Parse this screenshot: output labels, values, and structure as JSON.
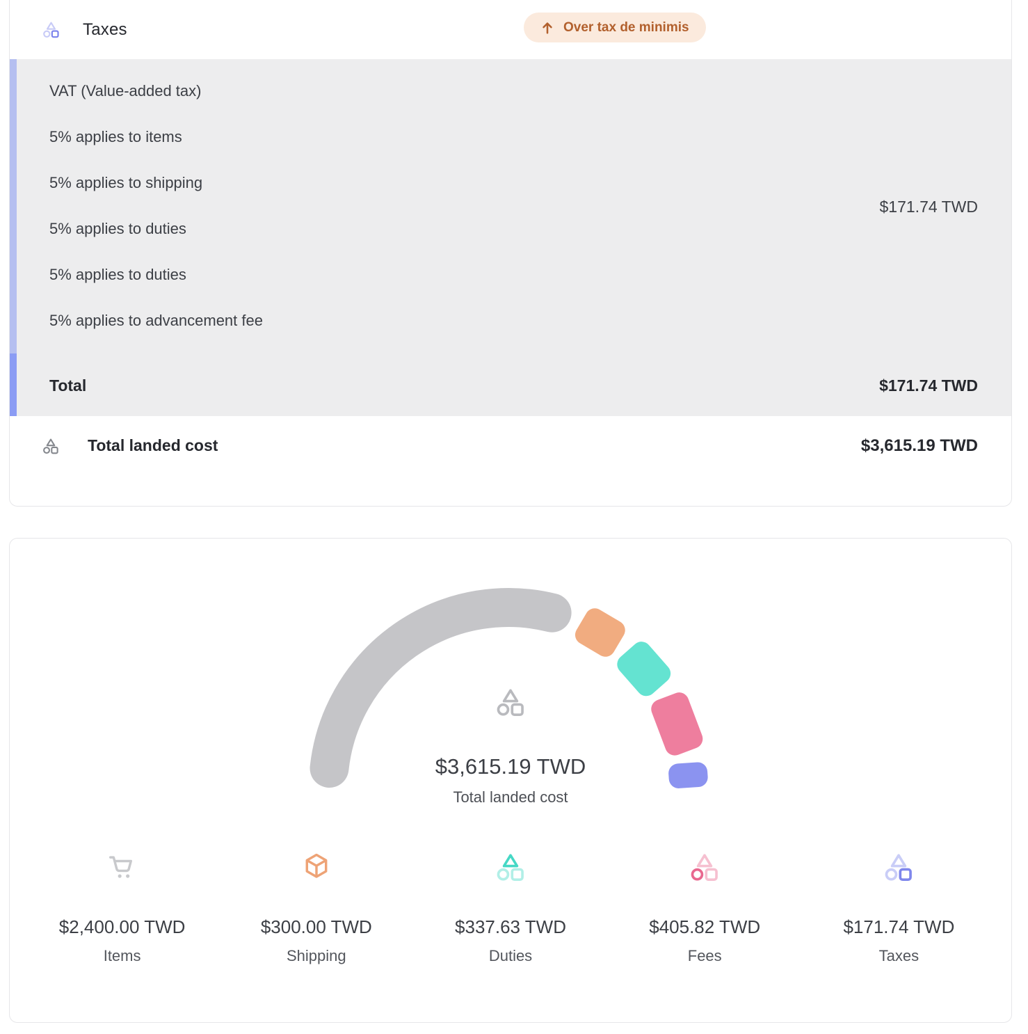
{
  "tax_card": {
    "title": "Taxes",
    "badge_label": "Over tax de minimis",
    "vat": {
      "title": "VAT (Value-added tax)",
      "lines": [
        "5% applies to items",
        "5% applies to shipping",
        "5% applies to duties",
        "5% applies to duties",
        "5% applies to advancement fee"
      ],
      "amount": "$171.74 TWD"
    },
    "total": {
      "label": "Total",
      "amount": "$171.74 TWD"
    },
    "landed": {
      "label": "Total landed cost",
      "amount": "$3,615.19 TWD"
    }
  },
  "summary_card": {
    "center": {
      "amount": "$3,615.19 TWD",
      "label": "Total landed cost"
    },
    "chart_data": {
      "type": "pie",
      "variant": "half-donut-gauge",
      "categories": [
        "Items",
        "Shipping",
        "Duties",
        "Fees",
        "Taxes"
      ],
      "values": [
        2400.0,
        300.0,
        337.63,
        405.82,
        171.74
      ],
      "total": 3615.19,
      "unit": "TWD",
      "center_title": "$3,615.19 TWD",
      "center_subtitle": "Total landed cost",
      "colors": [
        "#c5c5c8",
        "#f1ac80",
        "#64e3d1",
        "#ee7e9e",
        "#8b93f0"
      ],
      "legend_position": "bottom"
    },
    "columns": [
      {
        "icon": "cart-icon",
        "emphasis": null,
        "amount": "$2,400.00 TWD",
        "label": "Items",
        "color": "#c8c9cc"
      },
      {
        "icon": "package-icon",
        "emphasis": null,
        "amount": "$300.00 TWD",
        "label": "Shipping",
        "color": "#eea376"
      },
      {
        "icon": "shapes-icon",
        "emphasis": "triangle",
        "amount": "$337.63 TWD",
        "label": "Duties",
        "color": "#45d8c5"
      },
      {
        "icon": "shapes-icon",
        "emphasis": "circle",
        "amount": "$405.82 TWD",
        "label": "Fees",
        "color": "#e9688f"
      },
      {
        "icon": "shapes-icon",
        "emphasis": "square",
        "amount": "$171.74 TWD",
        "label": "Taxes",
        "color": "#7f87ec"
      }
    ]
  },
  "colors": {
    "taxes_header_icon": "#7b82ec",
    "landed_icon": "#84878d",
    "gauge_center_icon": "#b9babe",
    "accent_light": "#b5bff0",
    "accent_dark": "#8b9cf4",
    "badge_bg": "#fbeadd",
    "badge_text": "#b2602d",
    "panel_bg": "#ededee"
  }
}
